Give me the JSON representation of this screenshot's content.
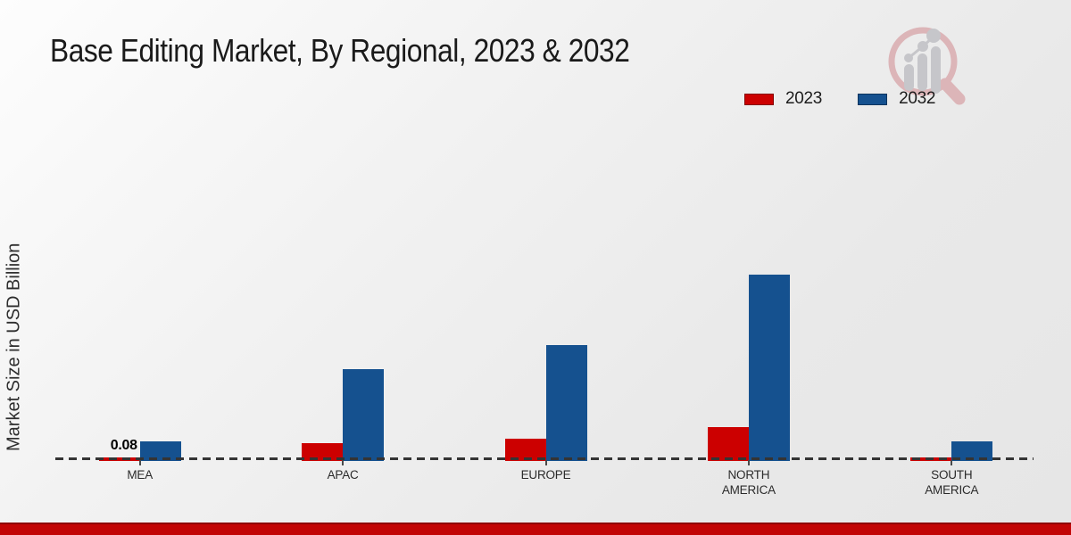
{
  "title": "Base Editing Market, By Regional, 2023 & 2032",
  "y_axis_label": "Market Size in USD Billion",
  "colors": {
    "series_2023": "#cc0000",
    "series_2032": "#15518f",
    "baseline_dash": "#343434",
    "footer_stripe": "#c20505",
    "footer_stripe_edge": "#8e0101",
    "logo_red": "#dcb5b8",
    "logo_gray": "#c6c6ca",
    "background": "#ececec"
  },
  "logo": {
    "name": "market-research-watermark"
  },
  "chart_data": {
    "type": "bar",
    "title": "Base Editing Market, By Regional, 2023 & 2032",
    "categories": [
      "MEA",
      "APAC",
      "EUROPE",
      "NORTH\nAMERICA",
      "SOUTH\nAMERICA"
    ],
    "series": [
      {
        "name": "2023",
        "color": "#cc0000",
        "values": [
          0.08,
          0.4,
          0.5,
          0.77,
          0.08
        ]
      },
      {
        "name": "2032",
        "color": "#15518f",
        "values": [
          0.44,
          2.06,
          2.6,
          4.18,
          0.44
        ]
      }
    ],
    "data_labels": [
      {
        "series": "2023",
        "category": "MEA",
        "text": "0.08"
      }
    ],
    "xlabel": "",
    "ylabel": "Market Size in USD Billion",
    "ylim": [
      0,
      4.5
    ],
    "grid": false,
    "legend_position": "top-right",
    "baseline_style": "dashed"
  }
}
